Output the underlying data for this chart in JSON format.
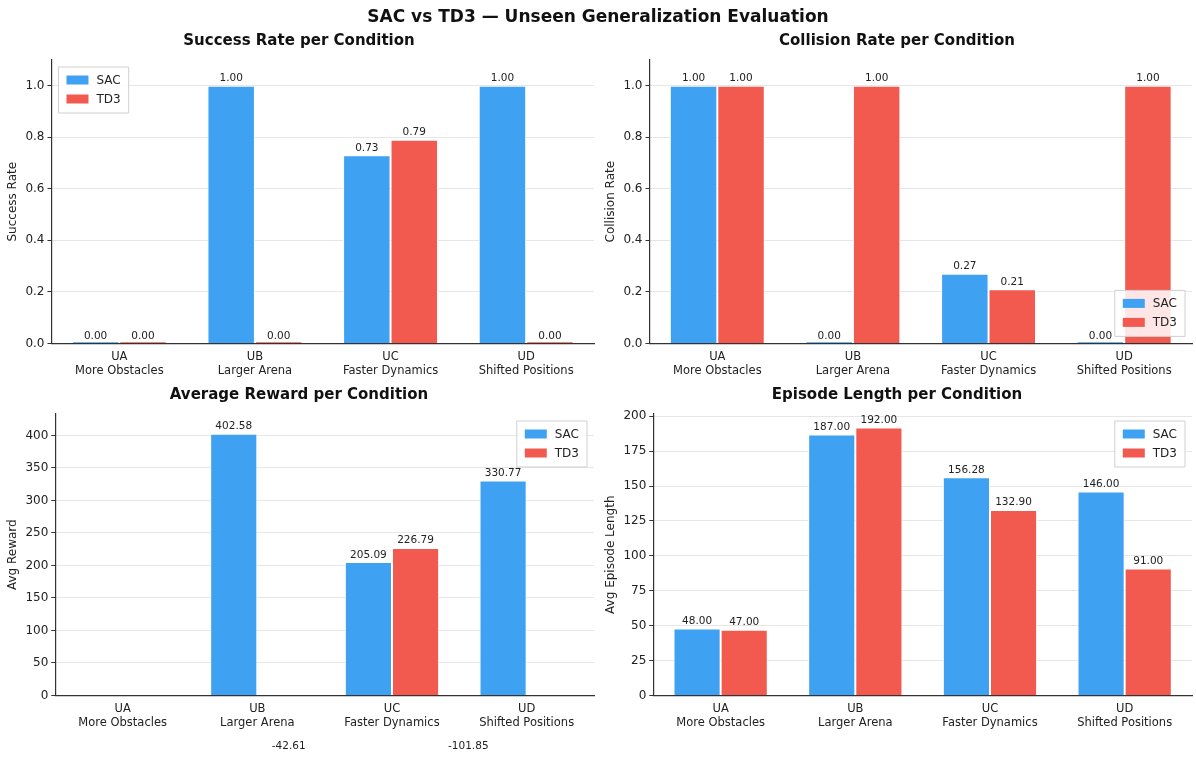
{
  "chart_data": [
    {
      "type": "bar",
      "title": "Success Rate per Condition",
      "ylabel": "Success Rate",
      "annotations": [
        "SAC vs TD3 — Unseen Generalization Evaluation"
      ],
      "categories": [
        "UA\nMore Obstacles",
        "UB\nLarger Arena",
        "UC\nFaster Dynamics",
        "UD\nShifted Positions"
      ],
      "series": [
        {
          "name": "SAC",
          "color": "#3fa1f2",
          "values": [
            0,
            1,
            0.73,
            1
          ],
          "value_labels": [
            "0.00",
            "1.00",
            "0.73",
            "1.00"
          ]
        },
        {
          "name": "TD3",
          "color": "#f2594f",
          "values": [
            0,
            0,
            0.79,
            0
          ],
          "value_labels": [
            "0.00",
            "0.00",
            "0.79",
            "0.00"
          ]
        }
      ],
      "ylim": [
        0,
        1.1
      ],
      "yticks": [
        {
          "value": 0,
          "label": "0.0"
        },
        {
          "value": 0.2,
          "label": "0.2"
        },
        {
          "value": 0.4,
          "label": "0.4"
        },
        {
          "value": 0.6,
          "label": "0.6"
        },
        {
          "value": 0.8,
          "label": "0.8"
        },
        {
          "value": 1,
          "label": "1.0"
        }
      ],
      "grid": "y",
      "legend": "top left"
    },
    {
      "type": "bar",
      "title": "Collision Rate per Condition",
      "ylabel": "Collision Rate",
      "categories": [
        "UA\nMore Obstacles",
        "UB\nLarger Arena",
        "UC\nFaster Dynamics",
        "UD\nShifted Positions"
      ],
      "series": [
        {
          "name": "SAC",
          "color": "#3fa1f2",
          "values": [
            1,
            0,
            0.27,
            0
          ],
          "value_labels": [
            "1.00",
            "0.00",
            "0.27",
            "0.00"
          ]
        },
        {
          "name": "TD3",
          "color": "#f2594f",
          "values": [
            1,
            1,
            0.21,
            1
          ],
          "value_labels": [
            "1.00",
            "1.00",
            "0.21",
            "1.00"
          ]
        }
      ],
      "ylim": [
        0,
        1.1
      ],
      "yticks": [
        {
          "value": 0,
          "label": "0.0"
        },
        {
          "value": 0.2,
          "label": "0.2"
        },
        {
          "value": 0.4,
          "label": "0.4"
        },
        {
          "value": 0.6,
          "label": "0.6"
        },
        {
          "value": 0.8,
          "label": "0.8"
        },
        {
          "value": 1,
          "label": "1.0"
        }
      ],
      "grid": "y",
      "legend": "bottom right"
    },
    {
      "type": "bar",
      "title": "Average Reward per Condition",
      "ylabel": "Avg Reward",
      "annotations": [
        "-42.61",
        "-101.85"
      ],
      "categories": [
        "UA\nMore Obstacles",
        "UB\nLarger Arena",
        "UC\nFaster Dynamics",
        "UD\nShifted Positions"
      ],
      "series": [
        {
          "name": "SAC",
          "color": "#3fa1f2",
          "values": [
            null,
            402.58,
            205.09,
            330.77
          ],
          "value_labels": [
            null,
            "402.58",
            "205.09",
            "330.77"
          ]
        },
        {
          "name": "TD3",
          "color": "#f2594f",
          "values": [
            null,
            null,
            226.79,
            null
          ],
          "value_labels": [
            null,
            null,
            "226.79",
            null
          ]
        }
      ],
      "ylim": [
        0,
        433
      ],
      "yticks": [
        0,
        50,
        100,
        150,
        200,
        250,
        300,
        350,
        400
      ],
      "grid": "y",
      "legend": "top right"
    },
    {
      "type": "bar",
      "title": "Episode Length per Condition",
      "ylabel": "Avg Episode Length",
      "categories": [
        "UA\nMore Obstacles",
        "UB\nLarger Arena",
        "UC\nFaster Dynamics",
        "UD\nShifted Positions"
      ],
      "series": [
        {
          "name": "SAC",
          "color": "#3fa1f2",
          "values": [
            48,
            187,
            156.28,
            146
          ],
          "value_labels": [
            "48.00",
            "187.00",
            "156.28",
            "146.00"
          ]
        },
        {
          "name": "TD3",
          "color": "#f2594f",
          "values": [
            47,
            192,
            132.9,
            91
          ],
          "value_labels": [
            "47.00",
            "192.00",
            "132.90",
            "91.00"
          ]
        }
      ],
      "ylim": [
        0,
        201.6
      ],
      "yticks": [
        0,
        25,
        50,
        75,
        100,
        125,
        150,
        175,
        200
      ],
      "grid": "y",
      "legend": "top right"
    }
  ]
}
